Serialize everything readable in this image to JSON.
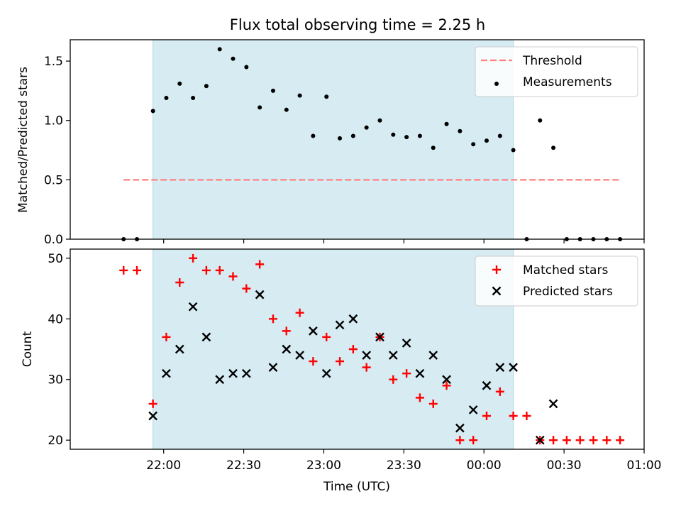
{
  "title": "Flux total observing time = 2.25 h",
  "shade_color": "#add8e6",
  "chart_data": [
    {
      "type": "scatter",
      "xlabel": "",
      "ylabel": "Matched/Predicted stars",
      "ylim": [
        0,
        1.68
      ],
      "yticks": [
        "0.0",
        "0.5",
        "1.0",
        "1.5"
      ],
      "xlim": [
        "21:25",
        "01:00"
      ],
      "grid": false,
      "legend_position": "top-right",
      "shaded_interval": [
        "21:56",
        "00:11"
      ],
      "series": [
        {
          "name": "Threshold",
          "kind": "dashed-line",
          "color": "#ff7f7f",
          "x": [
            "21:45",
            "00:51"
          ],
          "y": [
            0.5,
            0.5
          ]
        },
        {
          "name": "Measurements",
          "kind": "dots",
          "color": "#000000",
          "x": [
            "21:45",
            "21:50",
            "21:56",
            "22:01",
            "22:06",
            "22:11",
            "22:16",
            "22:21",
            "22:26",
            "22:31",
            "22:36",
            "22:41",
            "22:46",
            "22:51",
            "22:56",
            "23:01",
            "23:06",
            "23:11",
            "23:16",
            "23:21",
            "23:26",
            "23:31",
            "23:36",
            "23:41",
            "23:46",
            "23:51",
            "23:56",
            "00:01",
            "00:06",
            "00:11",
            "00:16",
            "00:21",
            "00:26",
            "00:31",
            "00:36",
            "00:41",
            "00:46",
            "00:51"
          ],
          "y": [
            0.0,
            0.0,
            1.08,
            1.19,
            1.31,
            1.19,
            1.29,
            1.6,
            1.52,
            1.45,
            1.11,
            1.25,
            1.09,
            1.21,
            0.87,
            1.2,
            0.85,
            0.87,
            0.94,
            1.0,
            0.88,
            0.86,
            0.87,
            0.77,
            0.97,
            0.91,
            0.8,
            0.83,
            0.87,
            0.75,
            0.0,
            1.0,
            0.77,
            0.0,
            0.0,
            0.0,
            0.0,
            0.0
          ]
        }
      ]
    },
    {
      "type": "scatter",
      "xlabel": "Time (UTC)",
      "ylabel": "Count",
      "ylim": [
        18.5,
        51.5
      ],
      "yticks": [
        "20",
        "30",
        "40",
        "50"
      ],
      "xlim": [
        "21:25",
        "01:00"
      ],
      "xticks": [
        "22:00",
        "22:30",
        "23:00",
        "23:30",
        "00:00",
        "00:30",
        "01:00"
      ],
      "grid": false,
      "legend_position": "top-right",
      "shaded_interval": [
        "21:56",
        "00:11"
      ],
      "series": [
        {
          "name": "Matched stars",
          "marker": "plus",
          "color": "#ff0000",
          "x": [
            "21:45",
            "21:50",
            "21:56",
            "22:01",
            "22:06",
            "22:11",
            "22:16",
            "22:21",
            "22:26",
            "22:31",
            "22:36",
            "22:41",
            "22:46",
            "22:51",
            "22:56",
            "23:01",
            "23:06",
            "23:11",
            "23:16",
            "23:21",
            "23:26",
            "23:31",
            "23:36",
            "23:41",
            "23:46",
            "23:51",
            "23:56",
            "00:01",
            "00:06",
            "00:11",
            "00:16",
            "00:21",
            "00:26",
            "00:31",
            "00:36",
            "00:41",
            "00:46",
            "00:51"
          ],
          "y": [
            48,
            48,
            26,
            37,
            46,
            50,
            48,
            48,
            47,
            45,
            49,
            40,
            38,
            41,
            33,
            37,
            33,
            35,
            32,
            37,
            30,
            31,
            27,
            26,
            29,
            20,
            20,
            24,
            28,
            24,
            24,
            20,
            20,
            20,
            20,
            20,
            20,
            20
          ]
        },
        {
          "name": "Predicted stars",
          "marker": "x",
          "color": "#000000",
          "x": [
            "21:56",
            "22:01",
            "22:06",
            "22:11",
            "22:16",
            "22:21",
            "22:26",
            "22:31",
            "22:36",
            "22:41",
            "22:46",
            "22:51",
            "22:56",
            "23:01",
            "23:06",
            "23:11",
            "23:16",
            "23:21",
            "23:26",
            "23:31",
            "23:36",
            "23:41",
            "23:46",
            "23:51",
            "23:56",
            "00:01",
            "00:06",
            "00:11",
            "00:21",
            "00:26"
          ],
          "y": [
            24,
            31,
            35,
            42,
            37,
            30,
            31,
            31,
            44,
            32,
            35,
            34,
            38,
            31,
            39,
            40,
            34,
            37,
            34,
            36,
            31,
            34,
            30,
            22,
            25,
            29,
            32,
            32,
            20,
            26
          ]
        }
      ]
    }
  ]
}
